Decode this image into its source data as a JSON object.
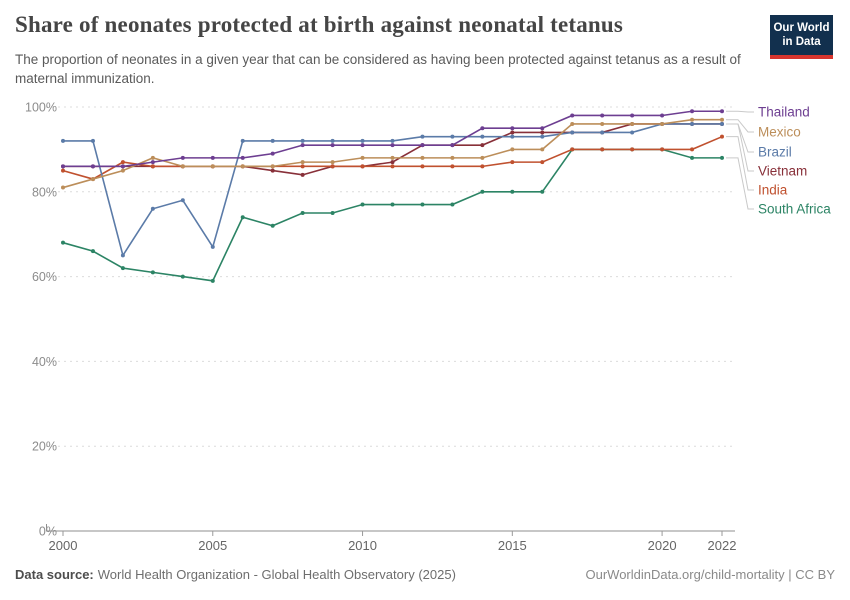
{
  "header": {
    "title": "Share of neonates protected at birth against neonatal tetanus",
    "subtitle": "The proportion of neonates in a given year that can be considered as having been protected against tetanus as a result of maternal immunization.",
    "logo": {
      "line1": "Our World",
      "line2": "in Data",
      "bg_color": "#12304E",
      "accent_color": "#D8352E"
    }
  },
  "chart_data": {
    "type": "line",
    "title": "Share of neonates protected at birth against neonatal tetanus",
    "x": [
      2000,
      2001,
      2002,
      2003,
      2004,
      2005,
      2006,
      2007,
      2008,
      2009,
      2010,
      2011,
      2012,
      2013,
      2014,
      2015,
      2016,
      2017,
      2018,
      2019,
      2020,
      2021,
      2022
    ],
    "x_tick_labels": [
      "2000",
      "2005",
      "2010",
      "2015",
      "2020",
      "2022"
    ],
    "x_tick_years": [
      2000,
      2005,
      2010,
      2015,
      2020,
      2022
    ],
    "y_tick_labels": [
      "0%",
      "20%",
      "40%",
      "60%",
      "80%",
      "100%"
    ],
    "y_tick_values": [
      0,
      20,
      40,
      60,
      80,
      100
    ],
    "ylim": [
      0,
      100
    ],
    "xlim": [
      2000,
      2022
    ],
    "grid": "dashed-horizontal",
    "legend_position": "right",
    "unit": "%",
    "series": [
      {
        "name": "Thailand",
        "color": "#6D3E91",
        "values": [
          86,
          86,
          86,
          87,
          88,
          88,
          88,
          89,
          91,
          91,
          91,
          91,
          91,
          91,
          95,
          95,
          95,
          98,
          98,
          98,
          98,
          99,
          99
        ]
      },
      {
        "name": "Mexico",
        "color": "#BC8E5A",
        "values": [
          81,
          83,
          85,
          88,
          86,
          86,
          86,
          86,
          87,
          87,
          88,
          88,
          88,
          88,
          88,
          90,
          90,
          96,
          96,
          96,
          96,
          97,
          97
        ]
      },
      {
        "name": "Brazil",
        "color": "#5B7BA8",
        "values": [
          92,
          92,
          65,
          76,
          78,
          67,
          92,
          92,
          92,
          92,
          92,
          92,
          93,
          93,
          93,
          93,
          93,
          94,
          94,
          94,
          96,
          96,
          96
        ]
      },
      {
        "name": "Vietnam",
        "color": "#883039",
        "values": [
          86,
          86,
          86,
          86,
          86,
          86,
          86,
          85,
          84,
          86,
          86,
          87,
          91,
          91,
          91,
          94,
          94,
          94,
          94,
          96,
          96,
          96,
          96
        ]
      },
      {
        "name": "India",
        "color": "#C0512F",
        "values": [
          85,
          83,
          87,
          86,
          86,
          86,
          86,
          86,
          86,
          86,
          86,
          86,
          86,
          86,
          86,
          87,
          87,
          90,
          90,
          90,
          90,
          90,
          93
        ]
      },
      {
        "name": "South Africa",
        "color": "#2C8465",
        "values": [
          68,
          66,
          62,
          61,
          60,
          59,
          74,
          72,
          75,
          75,
          77,
          77,
          77,
          77,
          80,
          80,
          80,
          90,
          90,
          90,
          90,
          88,
          88
        ]
      }
    ]
  },
  "footer": {
    "source_label": "Data source:",
    "source_text": "World Health Organization - Global Health Observatory (2025)",
    "link_text": "OurWorldinData.org/child-mortality",
    "separator": " | ",
    "license_text": "CC BY"
  }
}
